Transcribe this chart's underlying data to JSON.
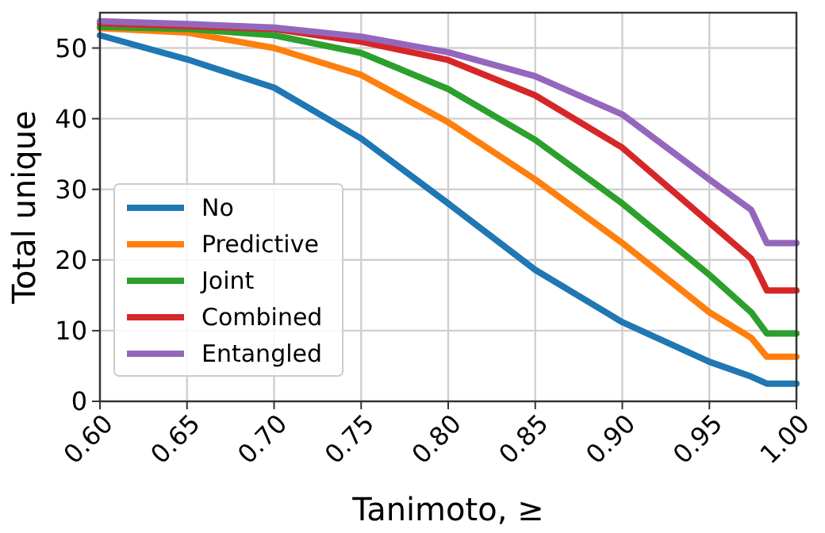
{
  "chart_data": {
    "type": "line",
    "xlabel": "Tanimoto, ≥",
    "ylabel": "Total unique",
    "x": [
      0.6,
      0.65,
      0.7,
      0.75,
      0.8,
      0.85,
      0.9,
      0.95,
      0.974,
      0.983,
      1.0
    ],
    "series": [
      {
        "name": "No",
        "color": "#1f77b4",
        "values": [
          51.8,
          48.4,
          44.4,
          37.2,
          28,
          18.6,
          11.2,
          5.6,
          3.5,
          2.5,
          2.5
        ]
      },
      {
        "name": "Predictive",
        "color": "#ff7f0e",
        "values": [
          52.8,
          52.2,
          50,
          46.2,
          39.5,
          31.4,
          22.4,
          12.6,
          9,
          6.3,
          6.3
        ]
      },
      {
        "name": "Joint",
        "color": "#2ca02c",
        "values": [
          53,
          52.7,
          51.8,
          49.3,
          44.2,
          37,
          28,
          17.9,
          12.6,
          9.6,
          9.6
        ]
      },
      {
        "name": "Combined",
        "color": "#d62728",
        "values": [
          53.5,
          53.1,
          52.7,
          50.9,
          48.3,
          43.3,
          35.9,
          25.3,
          20.2,
          15.7,
          15.7
        ]
      },
      {
        "name": "Entangled",
        "color": "#9467bd",
        "values": [
          53.8,
          53.4,
          52.9,
          51.6,
          49.4,
          46,
          40.6,
          31.4,
          27.1,
          22.4,
          22.4
        ]
      }
    ],
    "xlim": [
      0.6,
      1.0
    ],
    "xticks": [
      {
        "value": 0.6,
        "label": "0.60"
      },
      {
        "value": 0.65,
        "label": "0.65"
      },
      {
        "value": 0.7,
        "label": "0.70"
      },
      {
        "value": 0.75,
        "label": "0.75"
      },
      {
        "value": 0.8,
        "label": "0.80"
      },
      {
        "value": 0.85,
        "label": "0.85"
      },
      {
        "value": 0.9,
        "label": "0.90"
      },
      {
        "value": 0.95,
        "label": "0.95"
      },
      {
        "value": 1.0,
        "label": "1.00"
      }
    ],
    "ylim": [
      0,
      55
    ],
    "yticks": [
      0,
      10,
      20,
      30,
      40,
      50
    ],
    "grid": true,
    "legend": "bottom left",
    "line_style": "solid",
    "marker": "none"
  }
}
